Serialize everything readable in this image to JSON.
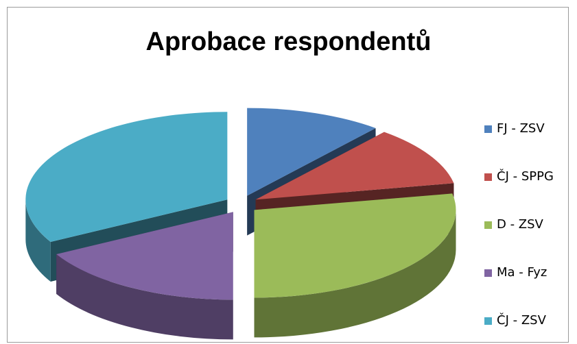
{
  "chart_data": {
    "type": "pie",
    "style": "3d-exploded",
    "title": "Aprobace respondentů",
    "legend_position": "right",
    "categories": [
      "FJ - ZSV",
      "ČJ - SPPG",
      "D - ZSV",
      "Ma - Fyz",
      "ČJ - ZSV"
    ],
    "values": [
      11,
      11,
      28,
      17,
      33
    ],
    "colors": [
      "#4f81bd",
      "#c0504d",
      "#9bbb59",
      "#8064a2",
      "#4bacc6"
    ]
  }
}
